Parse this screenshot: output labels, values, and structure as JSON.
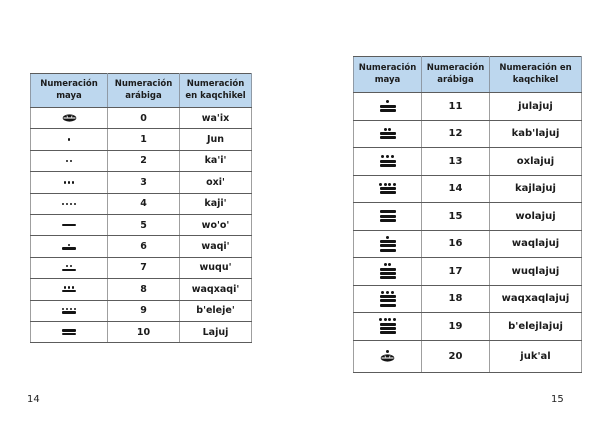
{
  "colors": {
    "header_bg": "#BDD7EE",
    "border_dark": "#5c5c5c",
    "glyph": "#141414"
  },
  "pages": [
    {
      "page_number": "14",
      "table": {
        "headers": [
          "Numeración maya",
          "Numeración arábiga",
          "Numeración en kaqchikel"
        ],
        "rows": [
          {
            "maya": {
              "shell": true
            },
            "arabic": "0",
            "kaqchikel": "wa'ix"
          },
          {
            "maya": {
              "dots": 1
            },
            "arabic": "1",
            "kaqchikel": "Jun"
          },
          {
            "maya": {
              "dots": 2
            },
            "arabic": "2",
            "kaqchikel": "ka'i'"
          },
          {
            "maya": {
              "dots": 3
            },
            "arabic": "3",
            "kaqchikel": "oxi'"
          },
          {
            "maya": {
              "dots": 4
            },
            "arabic": "4",
            "kaqchikel": "kaji'"
          },
          {
            "maya": {
              "bars": 1
            },
            "arabic": "5",
            "kaqchikel": "wo'o'"
          },
          {
            "maya": {
              "dots": 1,
              "bars": 1
            },
            "arabic": "6",
            "kaqchikel": "waqi'"
          },
          {
            "maya": {
              "dots": 2,
              "bars": 1
            },
            "arabic": "7",
            "kaqchikel": "wuqu'"
          },
          {
            "maya": {
              "dots": 3,
              "bars": 1
            },
            "arabic": "8",
            "kaqchikel": "waqxaqi'"
          },
          {
            "maya": {
              "dots": 4,
              "bars": 1
            },
            "arabic": "9",
            "kaqchikel": "b'eleje'"
          },
          {
            "maya": {
              "bars": 2
            },
            "arabic": "10",
            "kaqchikel": "Lajuj"
          }
        ]
      }
    },
    {
      "page_number": "15",
      "table": {
        "headers": [
          "Numeración maya",
          "Numeración arábiga",
          "Numeración en kaqchikel"
        ],
        "rows": [
          {
            "maya": {
              "dots": 1,
              "bars": 2
            },
            "arabic": "11",
            "kaqchikel": "julajuj"
          },
          {
            "maya": {
              "dots": 2,
              "bars": 2
            },
            "arabic": "12",
            "kaqchikel": "kab'lajuj"
          },
          {
            "maya": {
              "dots": 3,
              "bars": 2
            },
            "arabic": "13",
            "kaqchikel": "oxlajuj"
          },
          {
            "maya": {
              "dots": 4,
              "bars": 2
            },
            "arabic": "14",
            "kaqchikel": "kajlajuj"
          },
          {
            "maya": {
              "bars": 3
            },
            "arabic": "15",
            "kaqchikel": "wolajuj"
          },
          {
            "maya": {
              "dots": 1,
              "bars": 3
            },
            "arabic": "16",
            "kaqchikel": "waqlajuj"
          },
          {
            "maya": {
              "dots": 2,
              "bars": 3
            },
            "arabic": "17",
            "kaqchikel": "wuqlajuj"
          },
          {
            "maya": {
              "dots": 3,
              "bars": 3
            },
            "arabic": "18",
            "kaqchikel": "waqxaqlajuj"
          },
          {
            "maya": {
              "dots": 4,
              "bars": 3
            },
            "arabic": "19",
            "kaqchikel": "b'elejlajuj"
          },
          {
            "maya": {
              "dots": 1,
              "shell": true
            },
            "arabic": "20",
            "kaqchikel": "juk'al"
          }
        ]
      }
    }
  ]
}
